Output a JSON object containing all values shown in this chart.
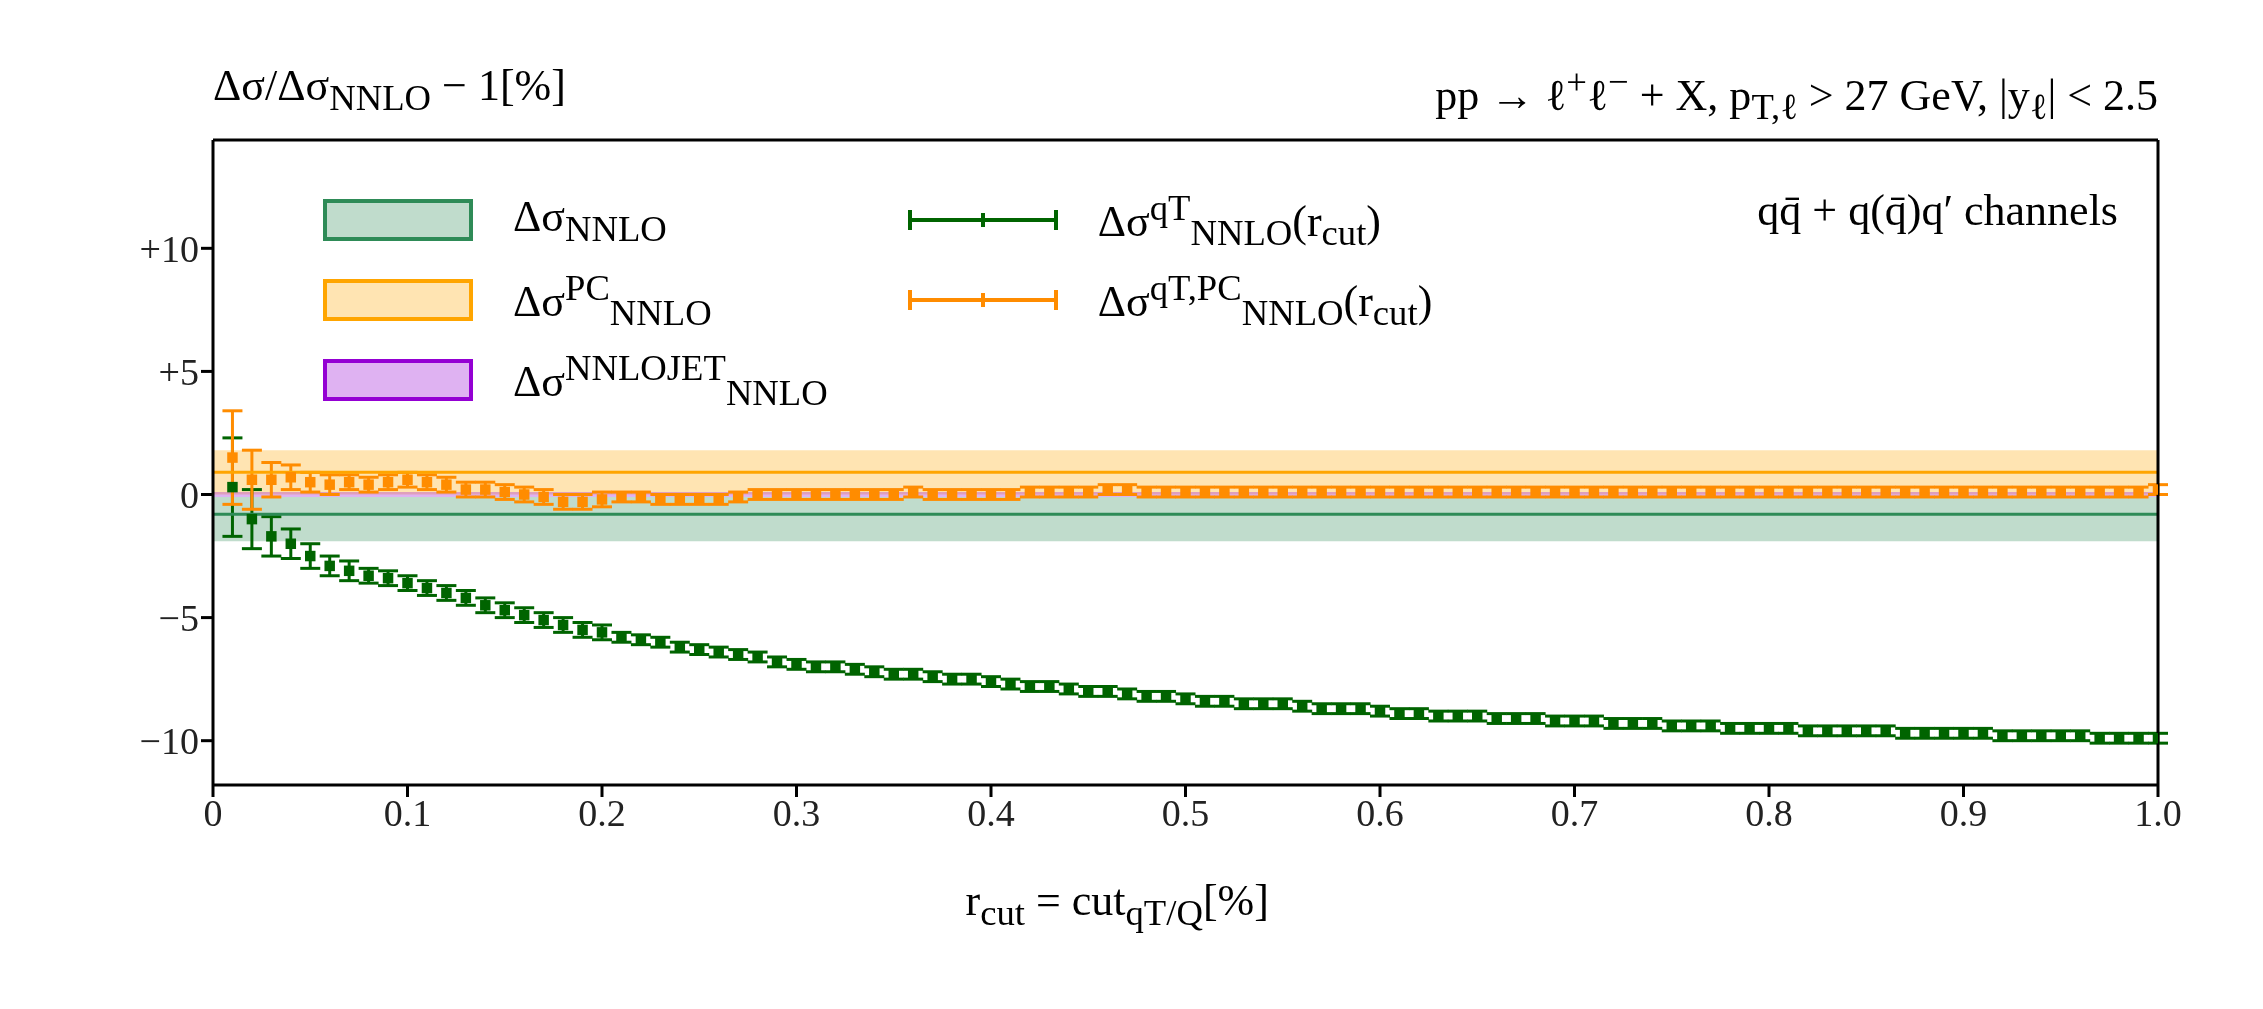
{
  "chart_data": {
    "type": "scatter",
    "title": "pp → ℓ$^{+}$ℓ$^{−}$ + X, p$_{T,ℓ}$ > 27 GeV, |y$_{ℓ}$| < 2.5",
    "ylabel": "Δσ/Δσ$_{NNLO}$ − 1[%]",
    "xlabel": "r$_{cut}$ = cut$_{qT/Q}$[%]",
    "annotations": [
      "qq̄ + q(q̄)q′ channels"
    ],
    "x": [
      0.01,
      0.02,
      0.03,
      0.04,
      0.05,
      0.06,
      0.07,
      0.08,
      0.09,
      0.1,
      0.11,
      0.12,
      0.13,
      0.14,
      0.15,
      0.16,
      0.17,
      0.18,
      0.19,
      0.2,
      0.21,
      0.22,
      0.23,
      0.24,
      0.25,
      0.26,
      0.27,
      0.28,
      0.29,
      0.3,
      0.31,
      0.32,
      0.33,
      0.34,
      0.35,
      0.36,
      0.37,
      0.38,
      0.39,
      0.4,
      0.41,
      0.42,
      0.43,
      0.44,
      0.45,
      0.46,
      0.47,
      0.48,
      0.49,
      0.5,
      0.51,
      0.52,
      0.53,
      0.54,
      0.55,
      0.56,
      0.57,
      0.58,
      0.59,
      0.6,
      0.61,
      0.62,
      0.63,
      0.64,
      0.65,
      0.66,
      0.67,
      0.68,
      0.69,
      0.7,
      0.71,
      0.72,
      0.73,
      0.74,
      0.75,
      0.76,
      0.77,
      0.78,
      0.79,
      0.8,
      0.81,
      0.82,
      0.83,
      0.84,
      0.85,
      0.86,
      0.87,
      0.88,
      0.89,
      0.9,
      0.91,
      0.92,
      0.93,
      0.94,
      0.95,
      0.96,
      0.97,
      0.98,
      0.99,
      1.0
    ],
    "series": [
      {
        "name": "Δσ$^{qT}$$_{NNLO}$(r$_{cut}$)",
        "color": "#006400",
        "values": [
          0.3,
          -1.0,
          -1.7,
          -2.0,
          -2.5,
          -2.9,
          -3.1,
          -3.3,
          -3.4,
          -3.6,
          -3.8,
          -4.0,
          -4.2,
          -4.5,
          -4.7,
          -4.9,
          -5.1,
          -5.3,
          -5.5,
          -5.6,
          -5.8,
          -5.9,
          -6.0,
          -6.2,
          -6.3,
          -6.4,
          -6.5,
          -6.6,
          -6.8,
          -6.9,
          -7.0,
          -7.0,
          -7.1,
          -7.2,
          -7.3,
          -7.3,
          -7.4,
          -7.5,
          -7.5,
          -7.6,
          -7.7,
          -7.8,
          -7.8,
          -7.9,
          -8.0,
          -8.0,
          -8.1,
          -8.2,
          -8.2,
          -8.3,
          -8.4,
          -8.4,
          -8.5,
          -8.5,
          -8.5,
          -8.6,
          -8.7,
          -8.7,
          -8.7,
          -8.8,
          -8.9,
          -8.9,
          -9.0,
          -9.0,
          -9.0,
          -9.1,
          -9.1,
          -9.1,
          -9.2,
          -9.2,
          -9.2,
          -9.3,
          -9.3,
          -9.3,
          -9.4,
          -9.4,
          -9.4,
          -9.5,
          -9.5,
          -9.5,
          -9.5,
          -9.6,
          -9.6,
          -9.6,
          -9.6,
          -9.6,
          -9.7,
          -9.7,
          -9.7,
          -9.7,
          -9.7,
          -9.8,
          -9.8,
          -9.8,
          -9.8,
          -9.8,
          -9.9,
          -9.9,
          -9.9,
          -9.9
        ],
        "errors": [
          2.0,
          1.2,
          0.8,
          0.6,
          0.5,
          0.4,
          0.4,
          0.3,
          0.3,
          0.3,
          0.3,
          0.3,
          0.3,
          0.3,
          0.3,
          0.3,
          0.3,
          0.3,
          0.3,
          0.3,
          0.2,
          0.2,
          0.2,
          0.2,
          0.2,
          0.2,
          0.2,
          0.2,
          0.2,
          0.2,
          0.2,
          0.2,
          0.2,
          0.2,
          0.2,
          0.2,
          0.2,
          0.2,
          0.2,
          0.2,
          0.2,
          0.2,
          0.2,
          0.2,
          0.2,
          0.2,
          0.2,
          0.2,
          0.2,
          0.2,
          0.2,
          0.2,
          0.2,
          0.2,
          0.2,
          0.2,
          0.2,
          0.2,
          0.2,
          0.2,
          0.2,
          0.2,
          0.2,
          0.2,
          0.2,
          0.2,
          0.2,
          0.2,
          0.2,
          0.2,
          0.2,
          0.2,
          0.2,
          0.2,
          0.2,
          0.2,
          0.2,
          0.2,
          0.2,
          0.2,
          0.2,
          0.2,
          0.2,
          0.2,
          0.2,
          0.2,
          0.2,
          0.2,
          0.2,
          0.2,
          0.2,
          0.2,
          0.2,
          0.2,
          0.2,
          0.2,
          0.2,
          0.2,
          0.2,
          0.2
        ]
      },
      {
        "name": "Δσ$^{qT,PC}$$_{NNLO}$(r$_{cut}$)",
        "color": "#ff8c00",
        "values": [
          1.5,
          0.6,
          0.6,
          0.7,
          0.5,
          0.4,
          0.5,
          0.4,
          0.5,
          0.6,
          0.5,
          0.4,
          0.2,
          0.2,
          0.1,
          0.0,
          -0.1,
          -0.3,
          -0.3,
          -0.2,
          -0.1,
          -0.1,
          -0.2,
          -0.2,
          -0.2,
          -0.2,
          -0.1,
          0.0,
          0.0,
          0.0,
          0.0,
          0.0,
          0.0,
          0.0,
          0.0,
          0.1,
          0.0,
          0.0,
          0.0,
          0.0,
          0.0,
          0.1,
          0.1,
          0.1,
          0.1,
          0.2,
          0.2,
          0.1,
          0.1,
          0.1,
          0.1,
          0.1,
          0.1,
          0.1,
          0.1,
          0.1,
          0.1,
          0.1,
          0.1,
          0.1,
          0.1,
          0.1,
          0.1,
          0.1,
          0.1,
          0.1,
          0.1,
          0.1,
          0.1,
          0.1,
          0.1,
          0.1,
          0.1,
          0.1,
          0.1,
          0.1,
          0.1,
          0.1,
          0.1,
          0.1,
          0.1,
          0.1,
          0.1,
          0.1,
          0.1,
          0.1,
          0.1,
          0.1,
          0.1,
          0.1,
          0.1,
          0.1,
          0.1,
          0.1,
          0.1,
          0.1,
          0.1,
          0.1,
          0.1,
          0.2
        ],
        "errors": [
          1.9,
          1.2,
          0.7,
          0.5,
          0.4,
          0.4,
          0.3,
          0.3,
          0.3,
          0.3,
          0.3,
          0.3,
          0.3,
          0.3,
          0.3,
          0.3,
          0.3,
          0.3,
          0.3,
          0.3,
          0.2,
          0.2,
          0.2,
          0.2,
          0.2,
          0.2,
          0.2,
          0.2,
          0.2,
          0.2,
          0.2,
          0.2,
          0.2,
          0.2,
          0.2,
          0.2,
          0.2,
          0.2,
          0.2,
          0.2,
          0.2,
          0.2,
          0.2,
          0.2,
          0.2,
          0.2,
          0.2,
          0.2,
          0.2,
          0.2,
          0.2,
          0.2,
          0.2,
          0.2,
          0.2,
          0.2,
          0.2,
          0.2,
          0.2,
          0.2,
          0.2,
          0.2,
          0.2,
          0.2,
          0.2,
          0.2,
          0.2,
          0.2,
          0.2,
          0.2,
          0.2,
          0.2,
          0.2,
          0.2,
          0.2,
          0.2,
          0.2,
          0.2,
          0.2,
          0.2,
          0.2,
          0.2,
          0.2,
          0.2,
          0.2,
          0.2,
          0.2,
          0.2,
          0.2,
          0.2,
          0.2,
          0.2,
          0.2,
          0.2,
          0.2,
          0.2,
          0.2,
          0.2,
          0.2,
          0.2
        ]
      }
    ],
    "bands": [
      {
        "axis": "y",
        "from": -1.9,
        "to": -0.1,
        "label": "Δσ$_{NNLO}$",
        "color": "#2e8b57"
      },
      {
        "axis": "y",
        "from": 0.0,
        "to": 1.8,
        "label": "Δσ$^{PC}$$_{NNLO}$",
        "color": "#ffa500"
      },
      {
        "axis": "y",
        "from": -0.1,
        "to": 0.1,
        "label": "Δσ$^{NNLOJET}$$_{NNLO}$",
        "color": "#9400d3"
      }
    ],
    "ref_lines": [
      {
        "axis": "y",
        "value": -0.8,
        "color": "#2e8b57"
      },
      {
        "axis": "y",
        "value": 0.9,
        "color": "#ffa500"
      }
    ],
    "xlim": [
      0,
      1.0
    ],
    "xticks": [
      0,
      0.1,
      0.2,
      0.3,
      0.4,
      0.5,
      0.6,
      0.7,
      0.8,
      0.9,
      {
        "value": 1.0,
        "label": "1.0"
      }
    ],
    "ylim": [
      -11.8,
      14.4
    ],
    "yticks": [
      {
        "value": -10,
        "label": "−10"
      },
      {
        "value": -5,
        "label": "−5"
      },
      0,
      {
        "value": 5,
        "label": "+5"
      },
      {
        "value": 10,
        "label": "+10"
      }
    ],
    "marker": "square",
    "legend": "top left"
  }
}
